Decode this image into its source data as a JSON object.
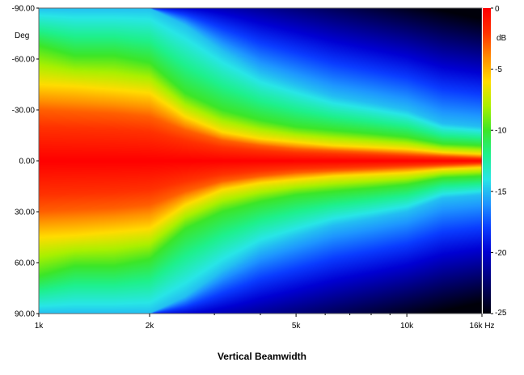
{
  "chart_data": {
    "type": "heatmap",
    "title": "Vertical Beamwidth",
    "x_scale": "log",
    "x_range": [
      1000,
      16000
    ],
    "x_ticks": [
      {
        "value": 1000,
        "label": "1k"
      },
      {
        "value": 2000,
        "label": "2k"
      },
      {
        "value": 5000,
        "label": "5k"
      },
      {
        "value": 10000,
        "label": "10k"
      },
      {
        "value": 16000,
        "label": "16k Hz"
      }
    ],
    "y_range": [
      -90,
      90
    ],
    "y_unit": "Deg",
    "y_ticks": [
      {
        "value": -90,
        "label": "-90.00"
      },
      {
        "value": -60,
        "label": "-60.00"
      },
      {
        "value": -30,
        "label": "-30.00"
      },
      {
        "value": 0,
        "label": "0.00"
      },
      {
        "value": 30,
        "label": "30.00"
      },
      {
        "value": 60,
        "label": "60.00"
      },
      {
        "value": 90,
        "label": "90.00"
      }
    ],
    "colorbar": {
      "range": [
        -25,
        0
      ],
      "unit": "dB",
      "ticks": [
        {
          "value": 0,
          "label": "0"
        },
        {
          "value": -5,
          "label": "-5"
        },
        {
          "value": -10,
          "label": "-10"
        },
        {
          "value": -15,
          "label": "-15"
        },
        {
          "value": -20,
          "label": "-20"
        },
        {
          "value": -25,
          "label": "-25"
        }
      ]
    },
    "contours_6dB_half_angle_deg": {
      "freq_hz": [
        1000,
        1250,
        1600,
        2000,
        2500,
        3150,
        4000,
        5000,
        6300,
        8000,
        10000,
        12500,
        16000
      ],
      "minus3dB": [
        30,
        29,
        28,
        26,
        18,
        12,
        9,
        7,
        6,
        5,
        4,
        3,
        2
      ],
      "minus6dB": [
        45,
        44,
        42,
        40,
        26,
        17,
        13,
        11,
        9,
        8,
        7,
        5,
        4
      ],
      "minus10dB": [
        68,
        62,
        62,
        58,
        40,
        30,
        24,
        20,
        18,
        16,
        14,
        10,
        9
      ],
      "minus15dB": [
        90,
        90,
        90,
        90,
        80,
        65,
        52,
        45,
        38,
        34,
        30,
        22,
        20
      ]
    }
  }
}
